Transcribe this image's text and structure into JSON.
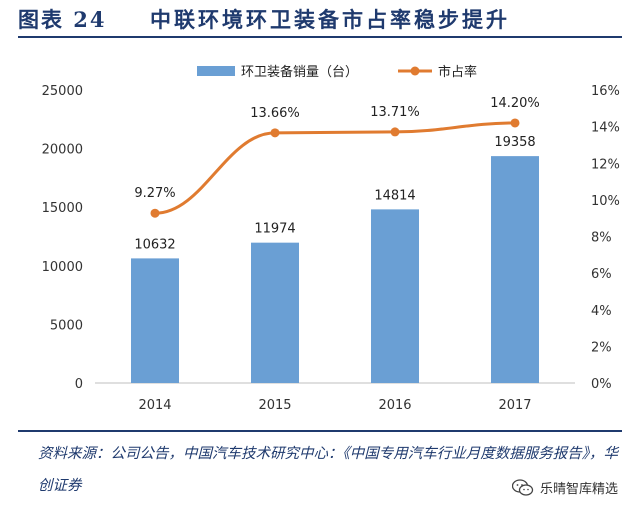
{
  "figure": {
    "number": "图表 24",
    "title": "中联环境环卫装备市占率稳步提升"
  },
  "source_text": "资料来源：公司公告，中国汽车技术研究中心：《中国专用汽车行业月度数据服务报告》，华创证券",
  "watermark_text": "乐晴智库精选",
  "colors": {
    "bar": "#6a9fd4",
    "line": "#e07b30",
    "heading": "#1f3a6e"
  },
  "chart_data": {
    "type": "bar",
    "categories": [
      "2014",
      "2015",
      "2016",
      "2017"
    ],
    "series": [
      {
        "name": "环卫装备销量（台）",
        "type": "bar",
        "axis": "left",
        "values": [
          10632,
          11974,
          14814,
          19358
        ],
        "labels": [
          "10632",
          "11974",
          "14814",
          "19358"
        ]
      },
      {
        "name": "市占率",
        "type": "line",
        "axis": "right",
        "values": [
          9.27,
          13.66,
          13.71,
          14.2
        ],
        "labels": [
          "9.27%",
          "13.66%",
          "13.71%",
          "14.20%"
        ]
      }
    ],
    "y_left": {
      "min": 0,
      "max": 25000,
      "ticks": [
        "0",
        "5000",
        "10000",
        "15000",
        "20000",
        "25000"
      ]
    },
    "y_right": {
      "min": 0,
      "max": 16,
      "ticks": [
        "0%",
        "2%",
        "4%",
        "6%",
        "8%",
        "10%",
        "12%",
        "14%",
        "16%"
      ]
    },
    "legend_position": "top",
    "grid": false
  }
}
